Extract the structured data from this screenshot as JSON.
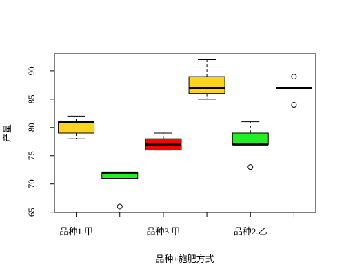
{
  "chart_data": {
    "type": "box",
    "x_label": "品种+施肥方式",
    "y_label": "产量",
    "categories": [
      "品种1.甲",
      null,
      "品种3.甲",
      null,
      "品种2.乙",
      null
    ],
    "boxes": [
      {
        "min": 78,
        "q1": 79,
        "median": 81,
        "q3": 81,
        "max": 82,
        "outliers": [],
        "color": "#FFD21F"
      },
      {
        "min": 71,
        "q1": 71,
        "median": 72,
        "q3": 72,
        "max": 72,
        "outliers": [
          66
        ],
        "color": "#22EE22"
      },
      {
        "min": 76,
        "q1": 76,
        "median": 77,
        "q3": 78,
        "max": 79,
        "outliers": [],
        "color": "#FF0000"
      },
      {
        "min": 85,
        "q1": 86,
        "median": 87,
        "q3": 89,
        "max": 92,
        "outliers": [],
        "color": "#FFD21F"
      },
      {
        "min": 77,
        "q1": 77,
        "median": 77,
        "q3": 79,
        "max": 81,
        "outliers": [
          73
        ],
        "color": "#22EE22"
      },
      {
        "min": 87,
        "q1": 87,
        "median": 87,
        "q3": 87,
        "max": 87,
        "outliers": [
          89,
          84
        ],
        "color": "#FFD21F"
      }
    ],
    "ylim": [
      64.96,
      93.04
    ],
    "yticks": [
      65,
      70,
      75,
      80,
      85,
      90
    ]
  }
}
